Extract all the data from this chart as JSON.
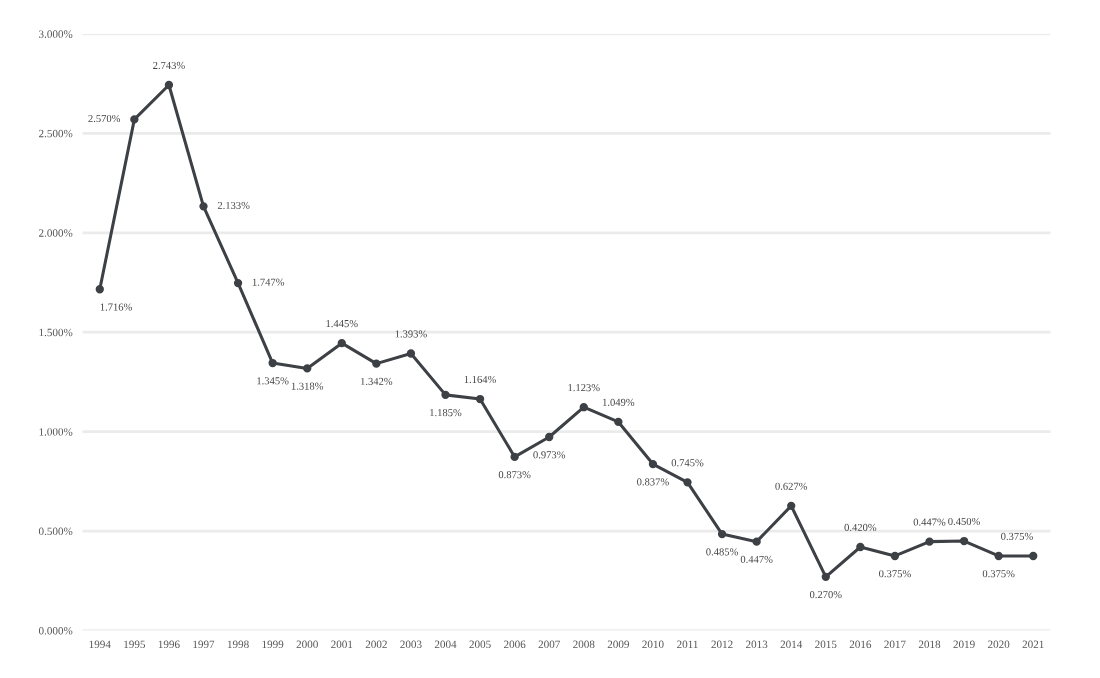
{
  "chart_data": {
    "type": "line",
    "categories": [
      "1994",
      "1995",
      "1996",
      "1997",
      "1998",
      "1999",
      "2000",
      "2001",
      "2002",
      "2003",
      "2004",
      "2005",
      "2006",
      "2007",
      "2008",
      "2009",
      "2010",
      "2011",
      "2012",
      "2013",
      "2014",
      "2015",
      "2016",
      "2017",
      "2018",
      "2019",
      "2020",
      "2021"
    ],
    "series": [
      {
        "color": "#3d4145",
        "values": [
          1.716,
          2.57,
          2.743,
          2.133,
          1.747,
          1.345,
          1.318,
          1.445,
          1.342,
          1.393,
          1.185,
          1.164,
          0.873,
          0.973,
          1.123,
          1.049,
          0.837,
          0.745,
          0.485,
          0.447,
          0.627,
          0.27,
          0.42,
          0.375,
          0.447,
          0.45,
          0.375,
          0.375
        ],
        "value_labels": [
          "1.716%",
          "2.570%",
          "2.743%",
          "2.133%",
          "1.747%",
          "1.345%",
          "1.318%",
          "1.445%",
          "1.342%",
          "1.393%",
          "1.185%",
          "1.164%",
          "0.873%",
          "0.973%",
          "1.123%",
          "1.049%",
          "0.837%",
          "0.745%",
          "0.485%",
          "0.447%",
          "0.627%",
          "0.270%",
          "0.420%",
          "0.375%",
          "0.447%",
          "0.450%",
          "0.375%",
          "0.375%"
        ]
      }
    ],
    "ylim": [
      0,
      3
    ],
    "yticks": [
      {
        "value": 0,
        "label": "0.000%"
      },
      {
        "value": 0.5,
        "label": "0.500%"
      },
      {
        "value": 1,
        "label": "1.000%"
      },
      {
        "value": 1.5,
        "label": "1.500%"
      },
      {
        "value": 2,
        "label": "2.000%"
      },
      {
        "value": 2.5,
        "label": "2.500%"
      },
      {
        "value": 3,
        "label": "3.000%"
      }
    ],
    "grid": "y",
    "marker": "circle",
    "line_style": "solid"
  }
}
